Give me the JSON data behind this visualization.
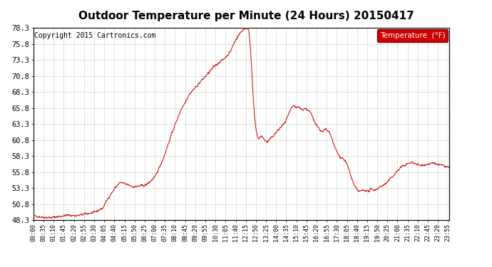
{
  "title": "Outdoor Temperature per Minute (24 Hours) 20150417",
  "copyright_text": "Copyright 2015 Cartronics.com",
  "legend_label": "Temperature  (°F)",
  "legend_bg": "#cc0000",
  "legend_text_color": "#ffffff",
  "line_color": "#cc0000",
  "background_color": "#ffffff",
  "grid_color": "#999999",
  "ylim": [
    48.3,
    78.3
  ],
  "yticks": [
    48.3,
    50.8,
    53.3,
    55.8,
    58.3,
    60.8,
    63.3,
    65.8,
    68.3,
    70.8,
    73.3,
    75.8,
    78.3
  ],
  "x_tick_interval_minutes": 35,
  "total_minutes": 1440,
  "title_fontsize": 11,
  "copyright_fontsize": 7,
  "tick_label_fontsize": 6,
  "y_tick_label_fontsize": 7.5,
  "keypoints": [
    [
      0,
      49.0
    ],
    [
      30,
      48.8
    ],
    [
      60,
      48.7
    ],
    [
      90,
      48.9
    ],
    [
      120,
      49.1
    ],
    [
      150,
      49.0
    ],
    [
      180,
      49.3
    ],
    [
      210,
      49.5
    ],
    [
      240,
      50.2
    ],
    [
      255,
      51.5
    ],
    [
      270,
      52.5
    ],
    [
      285,
      53.5
    ],
    [
      300,
      54.2
    ],
    [
      315,
      54.0
    ],
    [
      330,
      53.8
    ],
    [
      345,
      53.5
    ],
    [
      360,
      53.6
    ],
    [
      390,
      53.8
    ],
    [
      420,
      55.0
    ],
    [
      450,
      58.0
    ],
    [
      480,
      62.0
    ],
    [
      510,
      65.5
    ],
    [
      540,
      68.0
    ],
    [
      570,
      69.5
    ],
    [
      600,
      71.0
    ],
    [
      630,
      72.5
    ],
    [
      660,
      73.5
    ],
    [
      680,
      74.5
    ],
    [
      700,
      76.5
    ],
    [
      720,
      77.8
    ],
    [
      730,
      78.2
    ],
    [
      740,
      78.3
    ],
    [
      745,
      78.0
    ],
    [
      750,
      76.0
    ],
    [
      755,
      72.0
    ],
    [
      760,
      68.0
    ],
    [
      765,
      64.5
    ],
    [
      770,
      62.5
    ],
    [
      775,
      61.5
    ],
    [
      780,
      61.0
    ],
    [
      790,
      61.5
    ],
    [
      800,
      60.8
    ],
    [
      810,
      60.5
    ],
    [
      820,
      61.0
    ],
    [
      830,
      61.5
    ],
    [
      840,
      62.0
    ],
    [
      850,
      62.5
    ],
    [
      860,
      63.0
    ],
    [
      870,
      63.5
    ],
    [
      880,
      64.5
    ],
    [
      890,
      65.5
    ],
    [
      900,
      66.2
    ],
    [
      910,
      65.8
    ],
    [
      920,
      66.0
    ],
    [
      930,
      65.5
    ],
    [
      940,
      65.8
    ],
    [
      950,
      65.5
    ],
    [
      960,
      65.0
    ],
    [
      970,
      64.0
    ],
    [
      980,
      63.2
    ],
    [
      990,
      62.5
    ],
    [
      1000,
      62.0
    ],
    [
      1010,
      62.5
    ],
    [
      1020,
      62.2
    ],
    [
      1030,
      61.5
    ],
    [
      1040,
      60.0
    ],
    [
      1050,
      59.0
    ],
    [
      1060,
      58.2
    ],
    [
      1070,
      58.0
    ],
    [
      1080,
      57.5
    ],
    [
      1090,
      56.5
    ],
    [
      1100,
      55.0
    ],
    [
      1110,
      53.8
    ],
    [
      1120,
      53.0
    ],
    [
      1130,
      52.8
    ],
    [
      1140,
      53.0
    ],
    [
      1150,
      53.0
    ],
    [
      1160,
      52.8
    ],
    [
      1170,
      53.2
    ],
    [
      1180,
      53.0
    ],
    [
      1190,
      53.2
    ],
    [
      1200,
      53.5
    ],
    [
      1210,
      53.8
    ],
    [
      1220,
      54.0
    ],
    [
      1230,
      54.5
    ],
    [
      1240,
      55.0
    ],
    [
      1250,
      55.5
    ],
    [
      1260,
      56.0
    ],
    [
      1270,
      56.5
    ],
    [
      1280,
      56.8
    ],
    [
      1290,
      57.0
    ],
    [
      1300,
      57.2
    ],
    [
      1310,
      57.3
    ],
    [
      1320,
      57.2
    ],
    [
      1330,
      57.0
    ],
    [
      1340,
      56.8
    ],
    [
      1350,
      57.0
    ],
    [
      1360,
      57.0
    ],
    [
      1380,
      57.2
    ],
    [
      1400,
      57.0
    ],
    [
      1420,
      56.8
    ],
    [
      1439,
      56.5
    ]
  ]
}
